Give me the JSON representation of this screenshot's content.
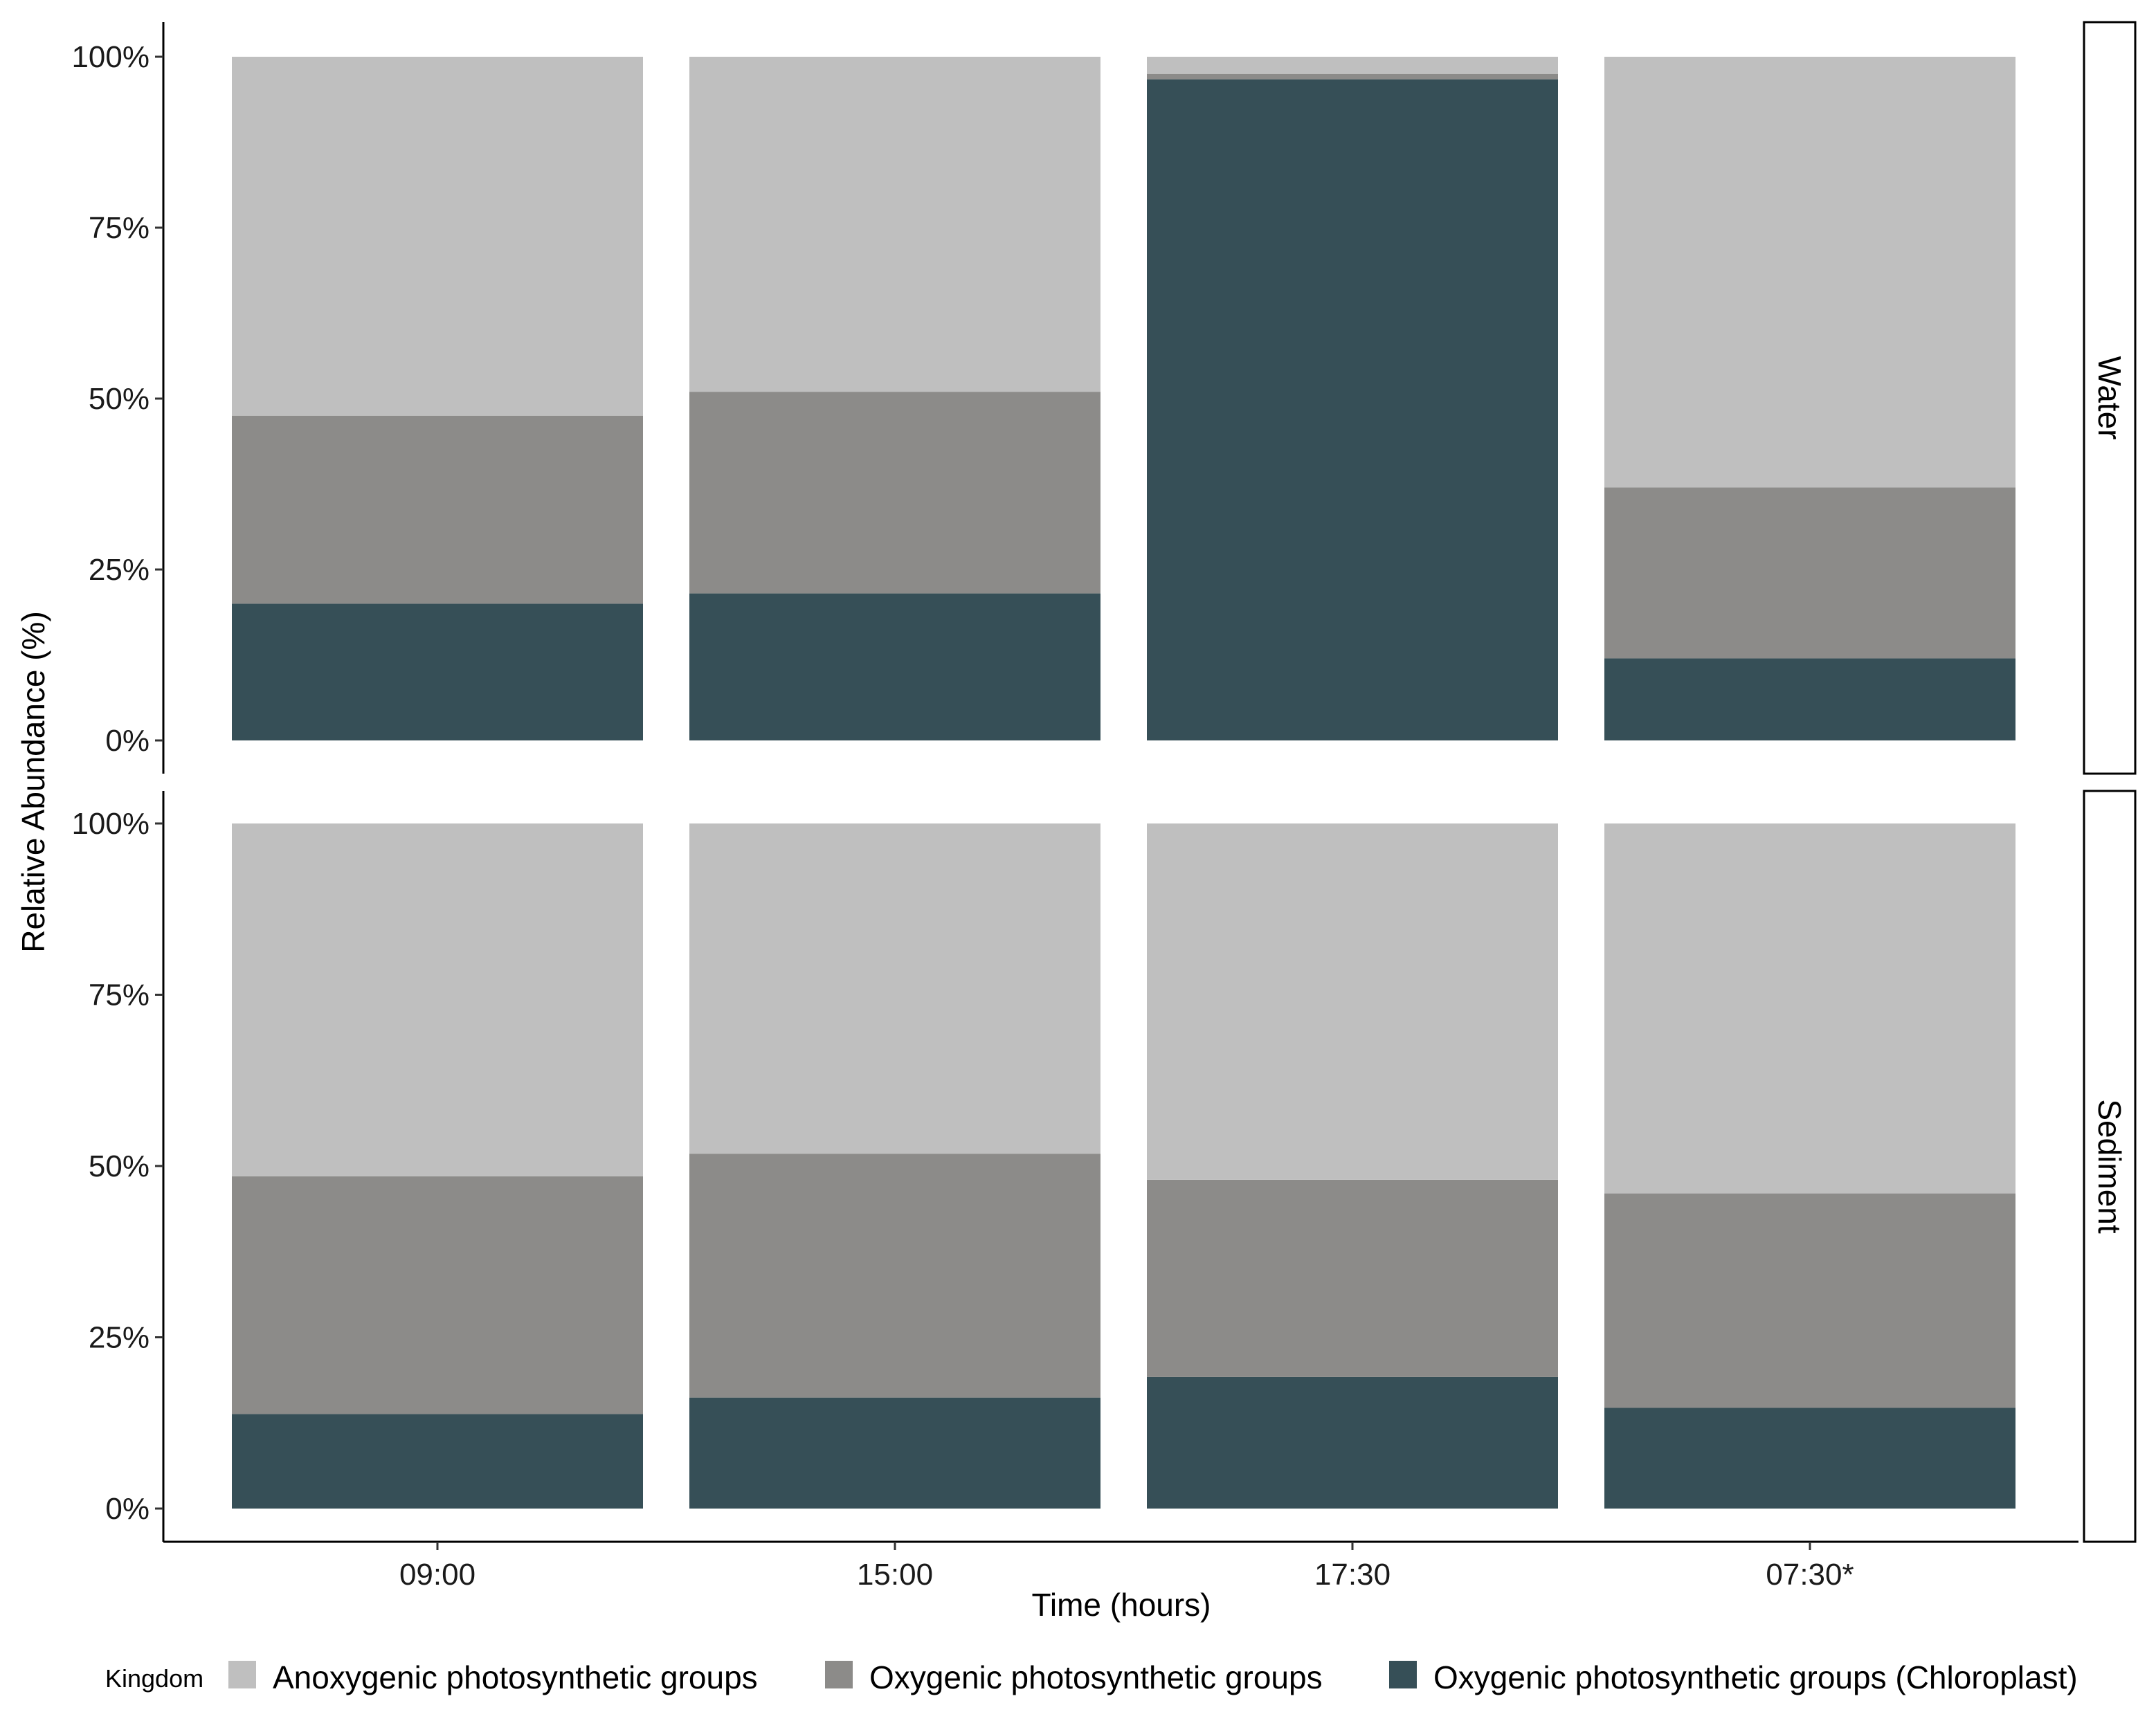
{
  "chart_data": {
    "type": "bar",
    "stacked": true,
    "normalized": true,
    "xlabel": "Time (hours)",
    "ylabel": "Relative Abundance (%)",
    "categories": [
      "09:00",
      "15:00",
      "17:30",
      "07:30*"
    ],
    "ylim": [
      0,
      100
    ],
    "yticks": [
      "0%",
      "25%",
      "50%",
      "75%",
      "100%"
    ],
    "ytick_values": [
      0,
      25,
      50,
      75,
      100
    ],
    "legend_title": "Kingdom",
    "legend_position": "bottom",
    "grid": false,
    "series_meta": [
      {
        "name": "Anoxygenic photosynthetic groups",
        "color": "#bfbfbf"
      },
      {
        "name": "Oxygenic photosynthetic groups",
        "color": "#8c8b89"
      },
      {
        "name": "Oxygenic photosynthetic groups (Chloroplast)",
        "color": "#364f57"
      }
    ],
    "panels": [
      {
        "facet": "Water",
        "series": [
          {
            "name": "Anoxygenic photosynthetic groups",
            "values": [
              52.5,
              49,
              2.5,
              63
            ]
          },
          {
            "name": "Oxygenic photosynthetic groups",
            "values": [
              27.5,
              29.5,
              0.8,
              25
            ]
          },
          {
            "name": "Oxygenic photosynthetic groups (Chloroplast)",
            "values": [
              20,
              21.5,
              96.7,
              12
            ]
          }
        ]
      },
      {
        "facet": "Sediment",
        "series": [
          {
            "name": "Anoxygenic photosynthetic groups",
            "values": [
              51.5,
              48.2,
              52,
              54
            ]
          },
          {
            "name": "Oxygenic photosynthetic groups",
            "values": [
              34.7,
              35.6,
              28.8,
              31.3
            ]
          },
          {
            "name": "Oxygenic photosynthetic groups (Chloroplast)",
            "values": [
              13.8,
              16.2,
              19.2,
              14.7
            ]
          }
        ]
      }
    ]
  }
}
